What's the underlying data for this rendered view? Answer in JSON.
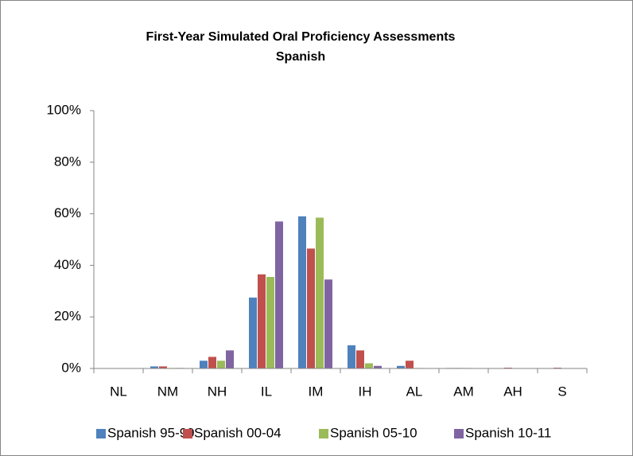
{
  "chart_data": {
    "type": "bar",
    "title": "First-Year Simulated Oral Proficiency Assessments",
    "subtitle": "Spanish",
    "categories": [
      "NL",
      "NM",
      "NH",
      "IL",
      "IM",
      "IH",
      "AL",
      "AM",
      "AH",
      "S"
    ],
    "series": [
      {
        "name": "Spanish 95-99",
        "color": "#4f81bd",
        "values": [
          0,
          0.8,
          3,
          27.5,
          59,
          9,
          1,
          0.2,
          0,
          0
        ]
      },
      {
        "name": "Spanish 00-04",
        "color": "#c0504d",
        "values": [
          0,
          0.8,
          4.5,
          36.5,
          46.5,
          7,
          3,
          0.2,
          0.3,
          0.3
        ]
      },
      {
        "name": "Spanish 05-10",
        "color": "#9bbb59",
        "values": [
          0,
          0.2,
          3,
          35.5,
          58.5,
          2,
          0.2,
          0.2,
          0,
          0
        ]
      },
      {
        "name": "Spanish 10-11",
        "color": "#8064a2",
        "values": [
          0,
          0.2,
          7,
          57,
          34.5,
          1,
          0,
          0,
          0,
          0
        ]
      }
    ],
    "ylim": [
      0,
      100
    ],
    "yticks": [
      {
        "value": 0,
        "label": "0%"
      },
      {
        "value": 20,
        "label": "20%"
      },
      {
        "value": 40,
        "label": "40%"
      },
      {
        "value": 60,
        "label": "60%"
      },
      {
        "value": 80,
        "label": "80%"
      },
      {
        "value": 100,
        "label": "100%"
      }
    ],
    "grid": false,
    "legend": "bottom"
  }
}
